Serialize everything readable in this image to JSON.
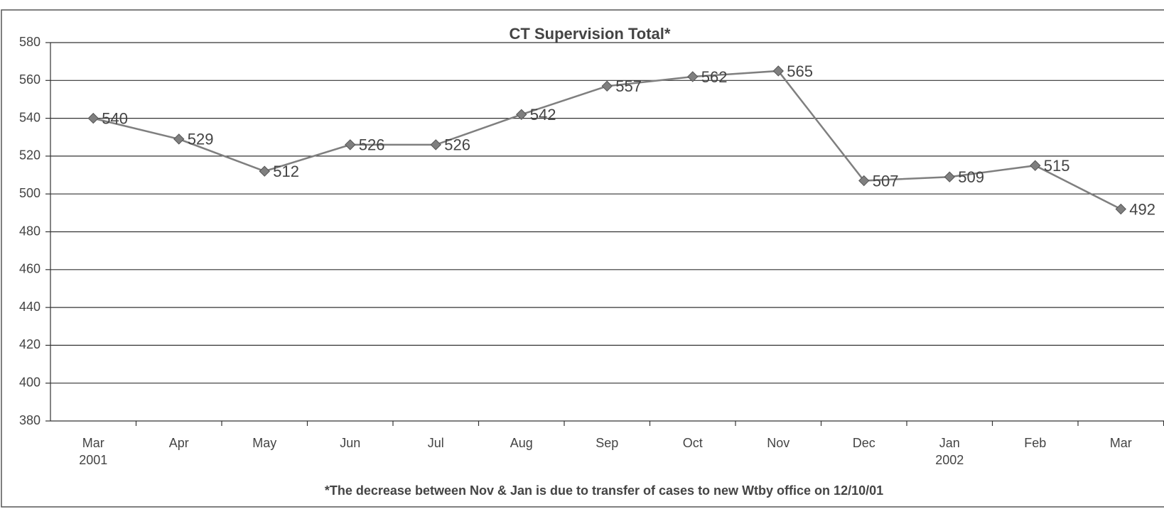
{
  "chart_data": {
    "type": "line",
    "title": "CT Supervision Total*",
    "annotation": "*The decrease between Nov & Jan is due to transfer of cases to new Wtby office on 12/10/01",
    "categories": [
      "Mar 2001",
      "Apr",
      "May",
      "Jun",
      "Jul",
      "Aug",
      "Sep",
      "Oct",
      "Nov",
      "Dec",
      "Jan 2002",
      "Feb",
      "Mar"
    ],
    "series": [
      {
        "name": "CT Supervision Total",
        "color": "#7f7f7f",
        "values": [
          540,
          529,
          512,
          526,
          526,
          542,
          557,
          562,
          565,
          507,
          509,
          515,
          492
        ]
      }
    ],
    "ylim": [
      380,
      580
    ],
    "yticks": [
      380,
      400,
      420,
      440,
      460,
      480,
      500,
      520,
      540,
      560,
      580
    ],
    "grid": true
  }
}
